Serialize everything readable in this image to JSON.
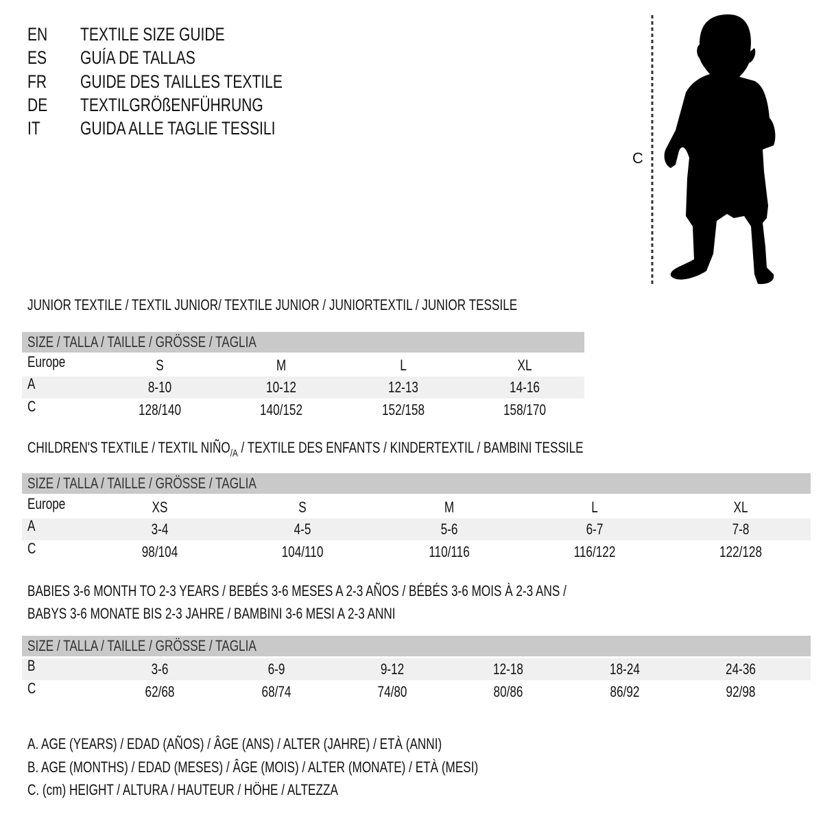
{
  "header": {
    "languages": [
      {
        "code": "EN",
        "title": "TEXTILE SIZE GUIDE"
      },
      {
        "code": "ES",
        "title": "GUÍA DE TALLAS"
      },
      {
        "code": "FR",
        "title": "GUIDE DES TAILLES TEXTILE"
      },
      {
        "code": "DE",
        "title": "TEXTILGRÖßENFÜHRUNG"
      },
      {
        "code": "IT",
        "title": "GUIDA ALLE TAGLIE TESSILI"
      }
    ]
  },
  "figure": {
    "label": "C",
    "icon": "child-silhouette-icon"
  },
  "size_bar_label": "SIZE / TALLA / TAILLE / GRÖSSE / TAGLIA",
  "junior": {
    "title": "JUNIOR TEXTILE / TEXTIL JUNIOR/ TEXTILE JUNIOR / JUNIORTEXTIL / JUNIOR TESSILE",
    "rows": [
      {
        "label": "Europe",
        "values": [
          "S",
          "M",
          "L",
          "XL"
        ]
      },
      {
        "label": "A",
        "values": [
          "8-10",
          "10-12",
          "12-13",
          "14-16"
        ]
      },
      {
        "label": "C",
        "values": [
          "128/140",
          "140/152",
          "152/158",
          "158/170"
        ]
      }
    ]
  },
  "children": {
    "title_a": "CHILDREN'S TEXTILE / TEXTIL NIÑO",
    "title_sub": "/A",
    "title_b": " / TEXTILE DES ENFANTS / KINDERTEXTIL / BAMBINI TESSILE",
    "rows": [
      {
        "label": "Europe",
        "values": [
          "XS",
          "S",
          "M",
          "L",
          "XL"
        ]
      },
      {
        "label": "A",
        "values": [
          "3-4",
          "4-5",
          "5-6",
          "6-7",
          "7-8"
        ]
      },
      {
        "label": "C",
        "values": [
          "98/104",
          "104/110",
          "110/116",
          "116/122",
          "122/128"
        ]
      }
    ]
  },
  "babies": {
    "title_line1": "BABIES 3-6 MONTH TO 2-3 YEARS / BEBÉS 3-6 MESES A 2-3 AÑOS / BÉBÉS 3-6 MOIS À 2-3 ANS /",
    "title_line2": "BABYS 3-6 MONATE BIS 2-3 JAHRE / BAMBINI 3-6 MESI A 2-3 ANNI",
    "rows": [
      {
        "label": "B",
        "values": [
          "3-6",
          "6-9",
          "9-12",
          "12-18",
          "18-24",
          "24-36"
        ]
      },
      {
        "label": "C",
        "values": [
          "62/68",
          "68/74",
          "74/80",
          "80/86",
          "86/92",
          "92/98"
        ]
      }
    ]
  },
  "legend": [
    "A. AGE (YEARS) / EDAD (AÑOS) / ÂGE (ANS) / ALTER (JAHRE) / ETÀ (ANNI)",
    "B. AGE (MONTHS) / EDAD (MESES) / ÂGE (MOIS) / ALTER (MONATE) / ETÀ (MESI)",
    "C. (cm) HEIGHT / ALTURA / HAUTEUR / HÖHE / ALTEZZA"
  ],
  "colors": {
    "bar": "#c9c9c9",
    "row_highlight": "#f0f0f0",
    "text": "#111111"
  }
}
